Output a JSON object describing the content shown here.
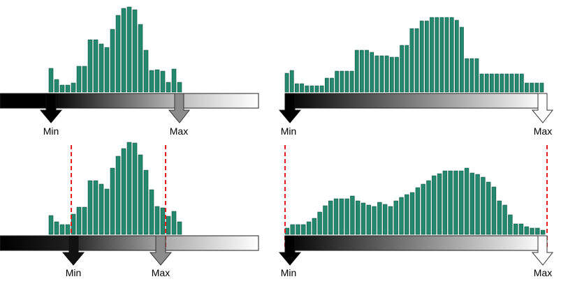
{
  "panels": [
    {
      "id": "top-left",
      "min_label": "Min",
      "max_label": "Max",
      "bars": [
        34,
        18,
        10,
        10,
        13,
        37,
        37,
        75,
        75,
        69,
        64,
        90,
        110,
        120,
        122,
        118,
        97,
        60,
        31,
        32,
        30,
        14,
        33,
        14
      ],
      "min_marker": "pointer",
      "max_marker": "pointer",
      "show_dashed_limits": false
    },
    {
      "id": "top-right",
      "min_label": "Min",
      "max_label": "Max",
      "bars": [
        27,
        31,
        12,
        12,
        9,
        9,
        9,
        9,
        20,
        20,
        30,
        30,
        30,
        30,
        60,
        60,
        60,
        57,
        52,
        52,
        52,
        50,
        50,
        67,
        67,
        91,
        91,
        102,
        102,
        107,
        107,
        107,
        107,
        107,
        103,
        93,
        48,
        48,
        48,
        26,
        26,
        26,
        26,
        26,
        26,
        26,
        26,
        26,
        13,
        13,
        13,
        13
      ],
      "min_marker": "pointer",
      "max_marker": "pointer",
      "show_dashed_limits": false
    },
    {
      "id": "bottom-left",
      "min_label": "Min",
      "max_label": "Max",
      "bars": [
        27,
        18,
        14,
        14,
        29,
        39,
        39,
        77,
        77,
        72,
        65,
        95,
        112,
        123,
        132,
        131,
        114,
        92,
        64,
        40,
        38,
        26,
        33,
        18
      ],
      "min_marker": "pointer",
      "max_marker": "pointer",
      "show_dashed_limits": true
    },
    {
      "id": "bottom-right",
      "min_label": "Min",
      "max_label": "Max",
      "bars": [
        9,
        14,
        14,
        14,
        18,
        23,
        32,
        41,
        48,
        51,
        51,
        51,
        55,
        48,
        45,
        42,
        40,
        46,
        43,
        40,
        48,
        53,
        57,
        60,
        67,
        72,
        77,
        84,
        87,
        91,
        91,
        91,
        91,
        95,
        88,
        86,
        82,
        75,
        68,
        48,
        42,
        28,
        15,
        15,
        11,
        9,
        9,
        6
      ],
      "min_marker": "pointer",
      "max_marker": "pointer",
      "show_dashed_limits": true
    }
  ],
  "colors": {
    "bar_fill": "#23886e",
    "bar_stroke": "#0e5440",
    "gradient_start": "#000000",
    "gradient_end": "#ffffff",
    "dashed_limit": "#e41f1f",
    "axis_stroke": "#222222"
  }
}
